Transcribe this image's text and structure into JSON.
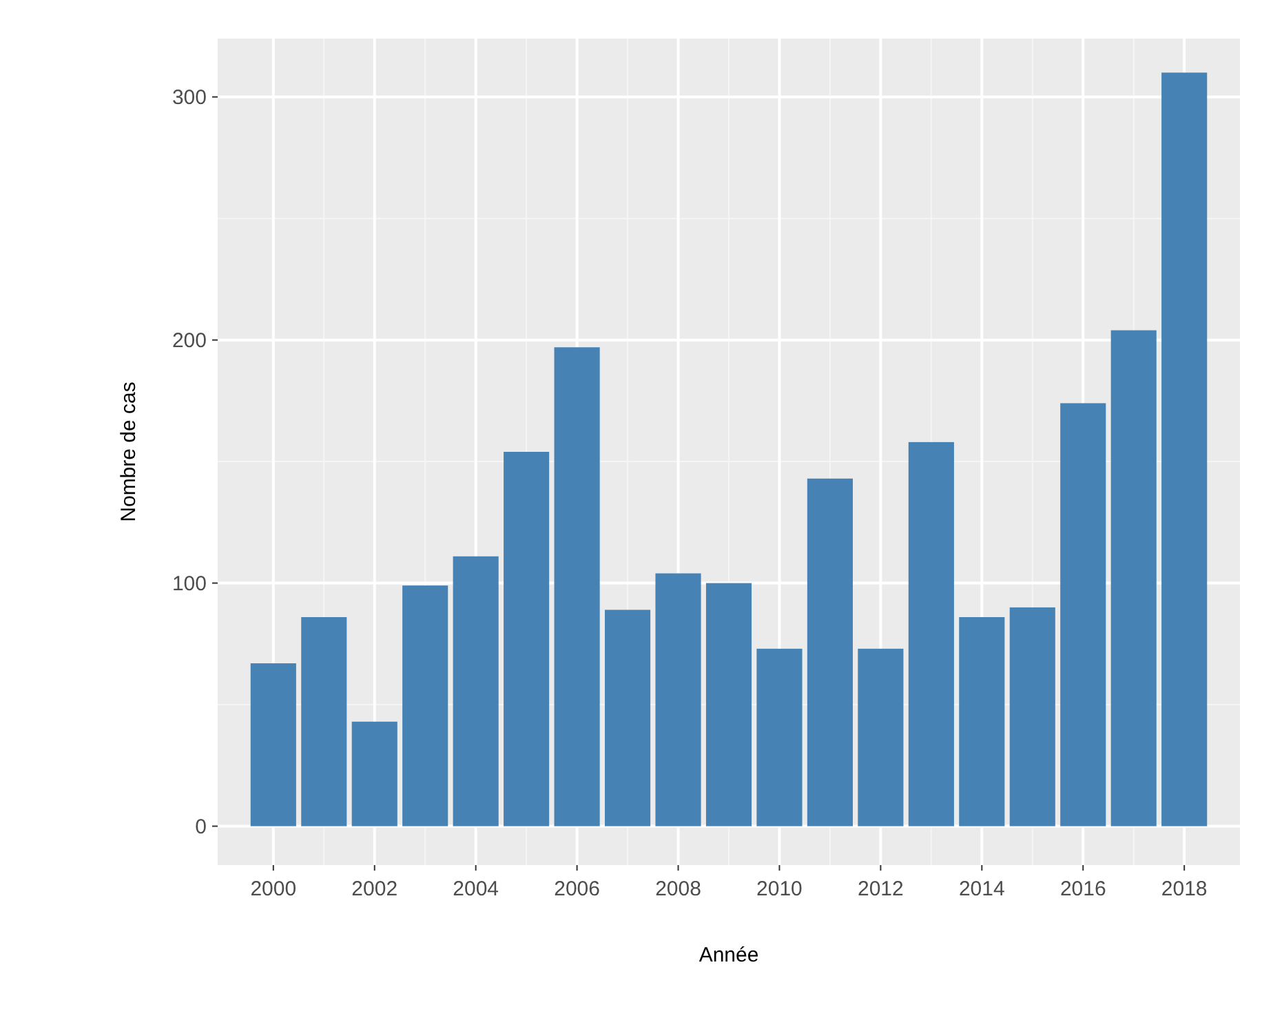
{
  "chart_data": {
    "type": "bar",
    "xlabel": "Année",
    "ylabel": "Nombre de cas",
    "x": [
      2000,
      2001,
      2002,
      2003,
      2004,
      2005,
      2006,
      2007,
      2008,
      2009,
      2010,
      2011,
      2012,
      2013,
      2014,
      2015,
      2016,
      2017,
      2018
    ],
    "values": [
      67,
      86,
      43,
      99,
      111,
      154,
      197,
      89,
      104,
      100,
      73,
      143,
      73,
      158,
      86,
      90,
      174,
      204,
      310
    ],
    "color": "#4682b4",
    "xlim": [
      1998.9,
      2019.1
    ],
    "xticks": [
      2000,
      2002,
      2004,
      2006,
      2008,
      2010,
      2012,
      2014,
      2016,
      2018
    ],
    "ylim": [
      -16,
      324
    ],
    "yticks": [
      0,
      100,
      200,
      300
    ],
    "grid": true
  }
}
